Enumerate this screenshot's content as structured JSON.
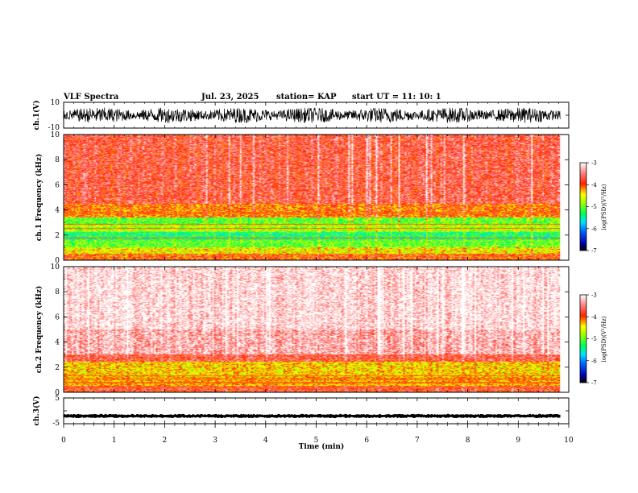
{
  "header": {
    "title": "VLF Spectra",
    "date": "Jul. 23, 2025",
    "station": "station= KAP",
    "start": "start  UT =   11: 10: 1"
  },
  "chart_data": [
    {
      "type": "line",
      "name": "ch1-waveform",
      "ylabel": "ch.1(V)",
      "ylim": [
        -10,
        10
      ],
      "y_tick_labels": [
        "10",
        "-10"
      ],
      "xlim": [
        0,
        10
      ],
      "data_extent_min": 9.83,
      "envelope_v": [
        -6,
        6
      ]
    },
    {
      "type": "heatmap",
      "name": "ch1-spectrogram",
      "ylabel": "ch.1  Frequency (kHz)",
      "ylim": [
        0,
        10
      ],
      "y_ticks": [
        "0",
        "2",
        "4",
        "6",
        "8",
        "10"
      ],
      "xlim": [
        0,
        10
      ],
      "data_extent_min": 9.83,
      "bands": [
        {
          "f_low_khz": 0.0,
          "f_high_khz": 0.5,
          "level": -4.0
        },
        {
          "f_low_khz": 0.5,
          "f_high_khz": 1.0,
          "level": -4.5
        },
        {
          "f_low_khz": 1.0,
          "f_high_khz": 1.6,
          "level": -5.0
        },
        {
          "f_low_khz": 1.6,
          "f_high_khz": 2.2,
          "level": -5.3
        },
        {
          "f_low_khz": 2.2,
          "f_high_khz": 2.9,
          "level": -4.8
        },
        {
          "f_low_khz": 2.9,
          "f_high_khz": 3.4,
          "level": -5.0
        },
        {
          "f_low_khz": 3.4,
          "f_high_khz": 4.5,
          "level": -4.1
        },
        {
          "f_low_khz": 4.5,
          "f_high_khz": 10.0,
          "level": -3.7
        }
      ],
      "colorbar": {
        "label": "log(PSD)(V²/Hz)",
        "ticks": [
          "-3",
          "-4",
          "-5",
          "-6",
          "-7"
        ],
        "range": [
          -7,
          -3
        ]
      }
    },
    {
      "type": "heatmap",
      "name": "ch2-spectrogram",
      "ylabel": "ch.2  Frequency (kHz)",
      "ylim": [
        0,
        10
      ],
      "y_ticks": [
        "0",
        "2",
        "4",
        "6",
        "8",
        "10"
      ],
      "xlim": [
        0,
        10
      ],
      "data_extent_min": 9.83,
      "bands": [
        {
          "f_low_khz": 0.0,
          "f_high_khz": 0.5,
          "level": -3.8
        },
        {
          "f_low_khz": 0.5,
          "f_high_khz": 1.2,
          "level": -4.3
        },
        {
          "f_low_khz": 1.2,
          "f_high_khz": 2.4,
          "level": -4.4
        },
        {
          "f_low_khz": 2.4,
          "f_high_khz": 3.0,
          "level": -3.7
        },
        {
          "f_low_khz": 3.0,
          "f_high_khz": 5.0,
          "level": -3.3
        },
        {
          "f_low_khz": 5.0,
          "f_high_khz": 10.0,
          "level": -3.1
        }
      ],
      "colorbar": {
        "label": "log(PSD)(V²/Hz)",
        "ticks": [
          "-3",
          "-4",
          "-5",
          "-6",
          "-7"
        ],
        "range": [
          -7,
          -3
        ]
      }
    },
    {
      "type": "line",
      "name": "ch3-waveform",
      "ylabel": "ch.3(V)",
      "ylim": [
        -5,
        5
      ],
      "y_tick_labels": [
        "5",
        "-5"
      ],
      "xlim": [
        0,
        10
      ],
      "data_extent_min": 9.83,
      "envelope_v": [
        -2.5,
        -1.5
      ]
    }
  ],
  "x_axis": {
    "label": "Time (min)",
    "ticks": [
      "0",
      "1",
      "2",
      "3",
      "4",
      "5",
      "6",
      "7",
      "8",
      "9",
      "10"
    ],
    "range": [
      0,
      10
    ]
  },
  "colors": {
    "axis": "#000000",
    "background": "#ffffff",
    "colormap": [
      "#000080",
      "#0000ff",
      "#00ffff",
      "#00ff00",
      "#ffff00",
      "#ff0000",
      "#ffffff"
    ]
  }
}
